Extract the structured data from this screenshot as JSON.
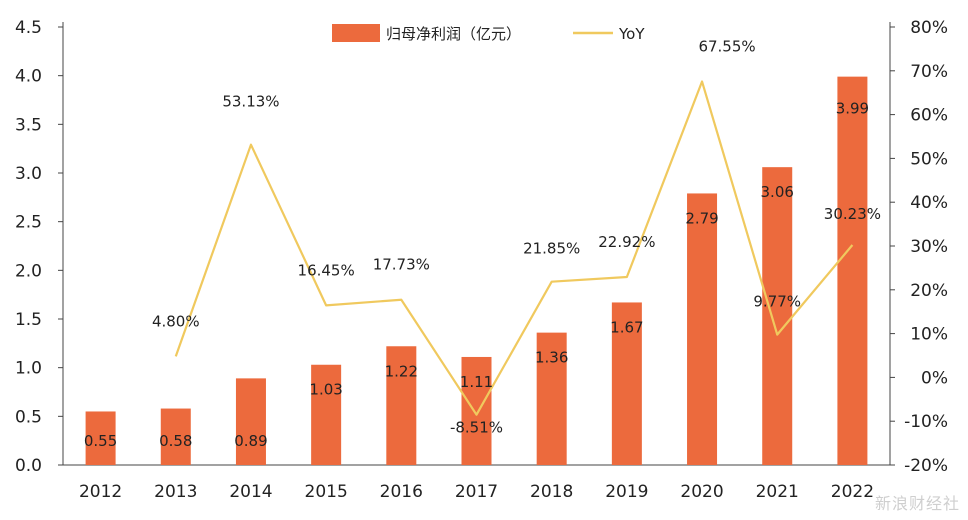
{
  "chart_data": {
    "type": "bar",
    "categories": [
      "2012",
      "2013",
      "2014",
      "2015",
      "2016",
      "2017",
      "2018",
      "2019",
      "2020",
      "2021",
      "2022"
    ],
    "series": [
      {
        "name": "归母净利润（亿元）",
        "kind": "bar",
        "axis": "left",
        "color": "#ec6a3d",
        "values": [
          0.55,
          0.58,
          0.89,
          1.03,
          1.22,
          1.11,
          1.36,
          1.67,
          2.79,
          3.06,
          3.99
        ],
        "labels": [
          "0.55",
          "0.58",
          "0.89",
          "1.03",
          "1.22",
          "1.11",
          "1.36",
          "1.67",
          "2.79",
          "3.06",
          "3.99"
        ]
      },
      {
        "name": "YoY",
        "kind": "line",
        "axis": "right",
        "color": "#f0c95e",
        "values": [
          null,
          4.8,
          53.13,
          16.45,
          17.73,
          -8.51,
          21.85,
          22.92,
          67.55,
          9.77,
          30.23
        ],
        "labels": [
          "",
          "4.80%",
          "53.13%",
          "16.45%",
          "17.73%",
          "-8.51%",
          "21.85%",
          "22.92%",
          "67.55%",
          "9.77%",
          "30.23%"
        ]
      }
    ],
    "y_left": {
      "min": 0,
      "max": 4.5,
      "ticks": [
        0,
        0.5,
        1,
        1.5,
        2,
        2.5,
        3,
        3.5,
        4,
        4.5
      ],
      "tick_labels": [
        "0.0",
        "0.5",
        "1.0",
        "1.5",
        "2.0",
        "2.5",
        "3.0",
        "3.5",
        "4.0",
        "4.5"
      ]
    },
    "y_right": {
      "min": -20,
      "max": 80,
      "ticks": [
        -20,
        -10,
        0,
        10,
        20,
        30,
        40,
        50,
        60,
        70,
        80
      ],
      "tick_labels": [
        "-20%",
        "-10%",
        "0%",
        "10%",
        "20%",
        "30%",
        "40%",
        "50%",
        "60%",
        "70%",
        "80%"
      ]
    },
    "legend_position": "top-center",
    "grid": false,
    "title": "",
    "xlabel": "",
    "ylabel": ""
  },
  "watermark": {
    "text": "新浪财经社"
  }
}
